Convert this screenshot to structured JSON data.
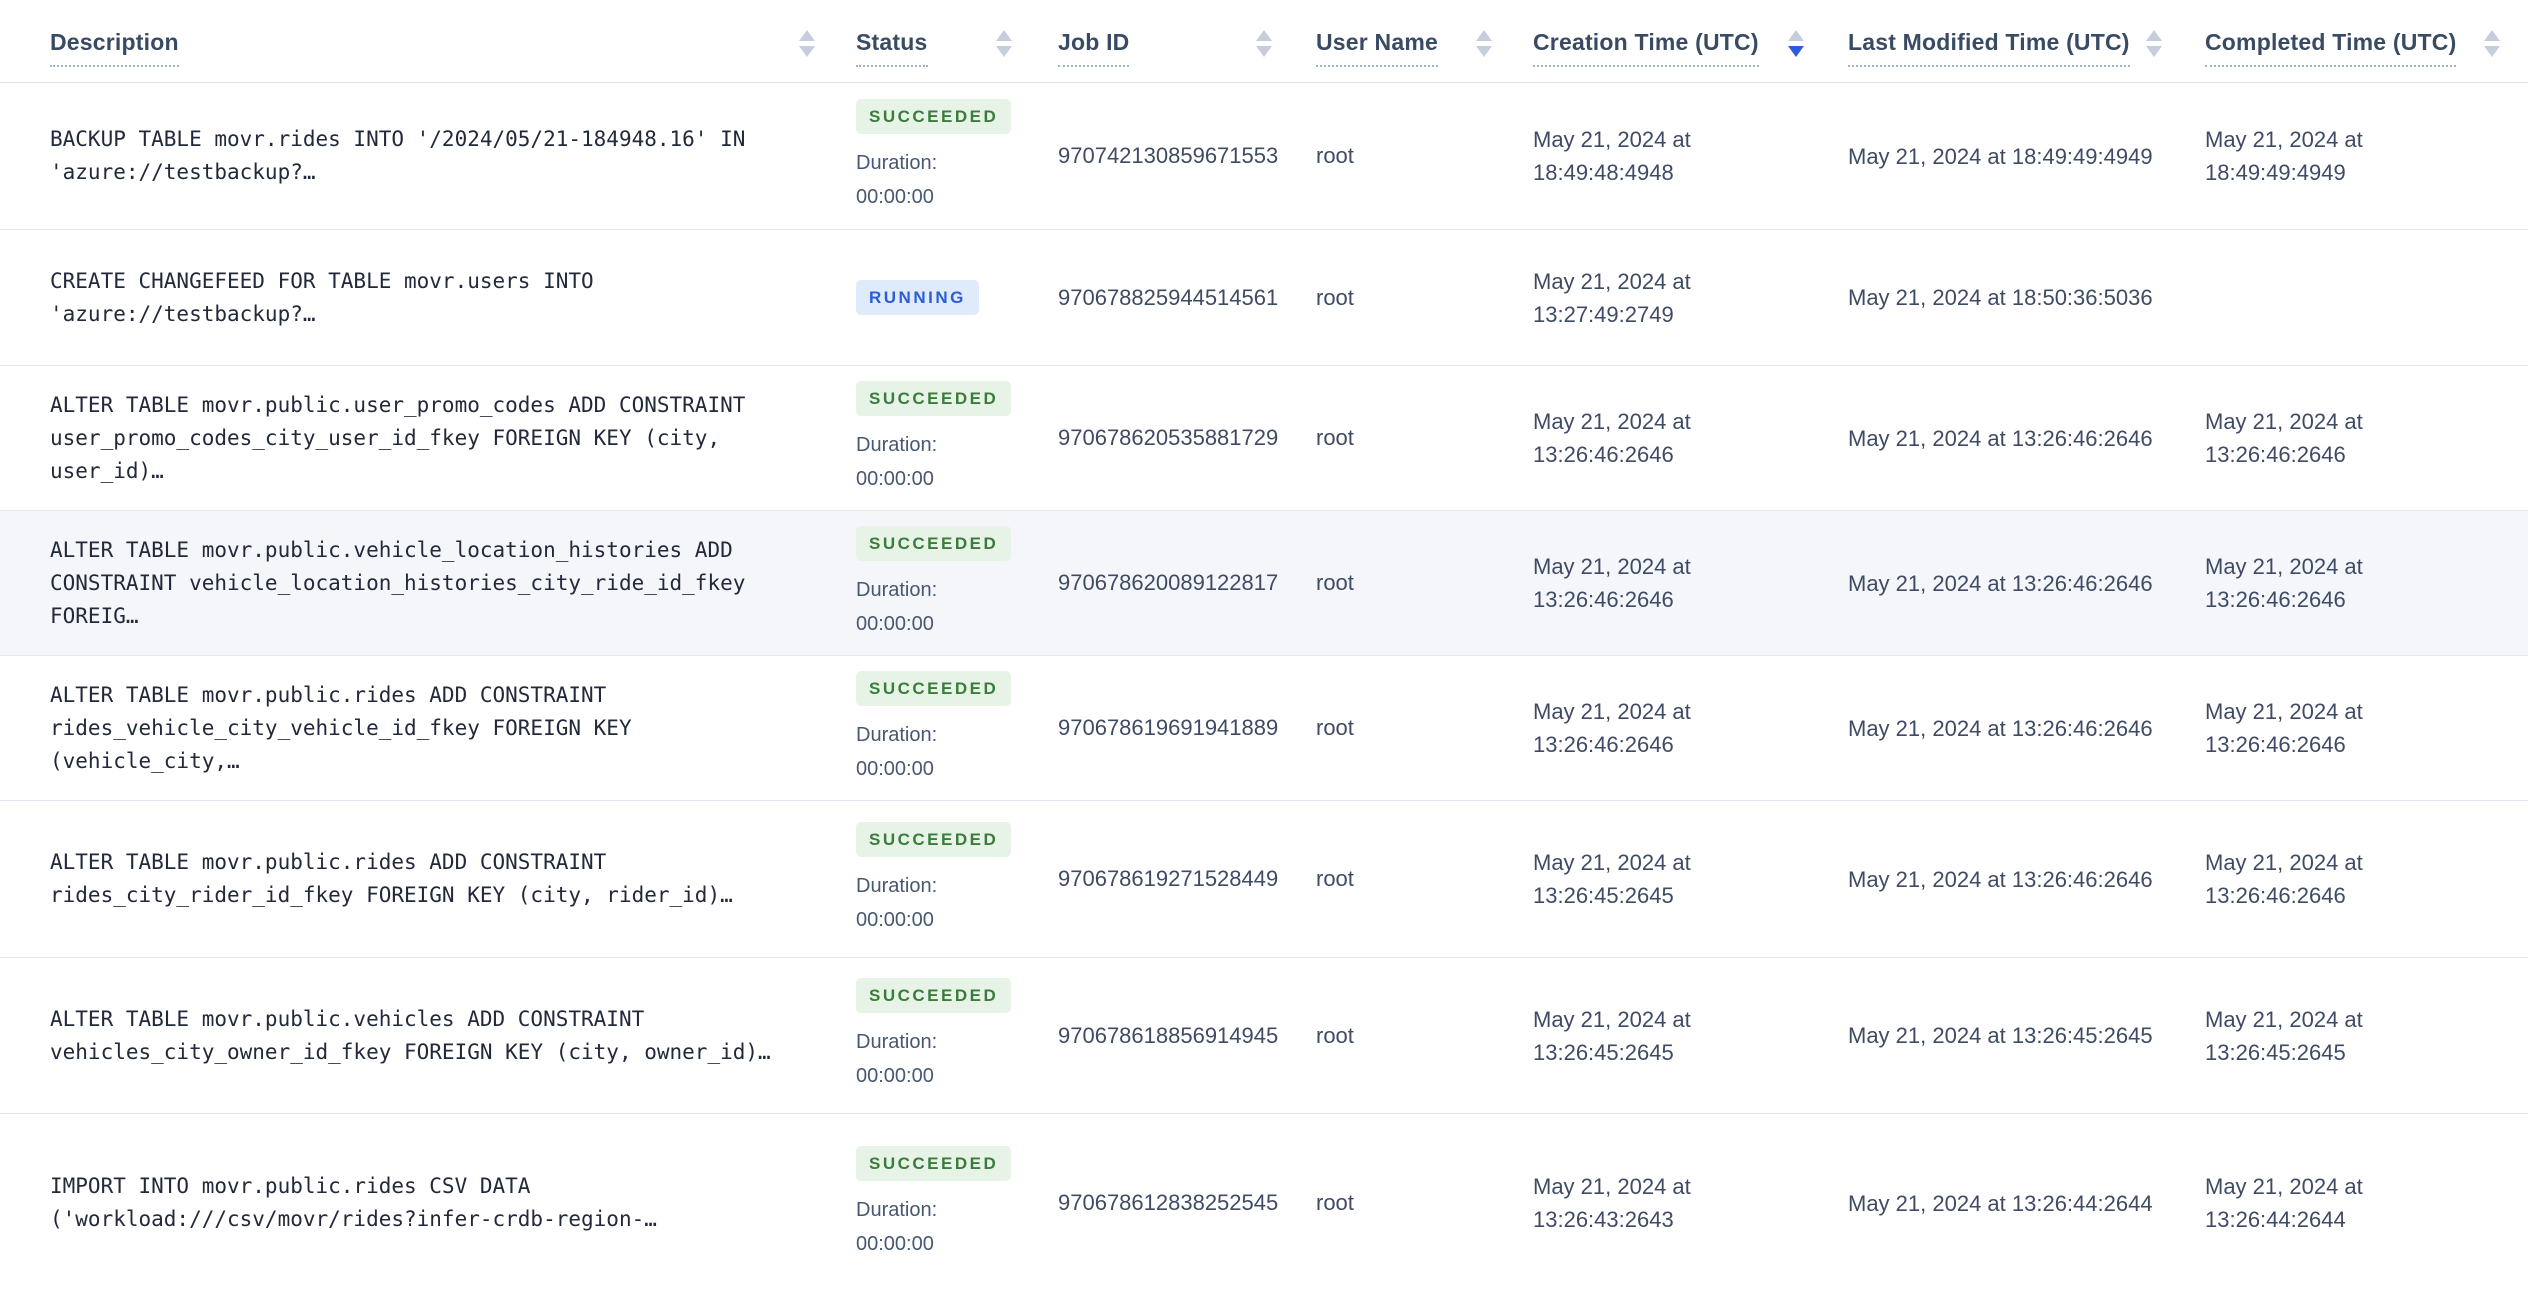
{
  "colors": {
    "accent_blue": "#2a5cdc",
    "succeeded_bg": "#e7f3e7",
    "succeeded_text": "#3a7d3a",
    "running_bg": "#dfeafb",
    "running_text": "#2a5cdc",
    "row_highlight_bg": "#f4f6fa"
  },
  "table": {
    "duration_label": "Duration:",
    "columns": [
      {
        "label": "Description",
        "sort": "none"
      },
      {
        "label": "Status",
        "sort": "none"
      },
      {
        "label": "Job ID",
        "sort": "none"
      },
      {
        "label": "User Name",
        "sort": "none"
      },
      {
        "label": "Creation Time (UTC)",
        "sort": "desc"
      },
      {
        "label": "Last Modified Time (UTC)",
        "sort": "none"
      },
      {
        "label": "Completed Time (UTC)",
        "sort": "none"
      }
    ],
    "rows": [
      {
        "description": "BACKUP TABLE movr.rides INTO '/2024/05/21-184948.16' IN\n'azure://testbackup?…",
        "status": "SUCCEEDED",
        "duration": "00:00:00",
        "job_id": "970742130859671553",
        "user_name": "root",
        "creation_time": "May 21, 2024 at 18:49:48:4948",
        "last_modified_time": "May 21, 2024 at 18:49:49:4949",
        "completed_time": "May 21, 2024 at 18:49:49:4949",
        "highlighted": false
      },
      {
        "description": "CREATE CHANGEFEED FOR TABLE movr.users INTO\n'azure://testbackup?…",
        "status": "RUNNING",
        "duration": null,
        "job_id": "970678825944514561",
        "user_name": "root",
        "creation_time": "May 21, 2024 at 13:27:49:2749",
        "last_modified_time": "May 21, 2024 at 18:50:36:5036",
        "completed_time": "",
        "highlighted": false
      },
      {
        "description": "ALTER TABLE movr.public.user_promo_codes ADD CONSTRAINT\nuser_promo_codes_city_user_id_fkey FOREIGN KEY (city, user_id)…",
        "status": "SUCCEEDED",
        "duration": "00:00:00",
        "job_id": "970678620535881729",
        "user_name": "root",
        "creation_time": "May 21, 2024 at 13:26:46:2646",
        "last_modified_time": "May 21, 2024 at 13:26:46:2646",
        "completed_time": "May 21, 2024 at 13:26:46:2646",
        "highlighted": false
      },
      {
        "description": "ALTER TABLE movr.public.vehicle_location_histories ADD\nCONSTRAINT vehicle_location_histories_city_ride_id_fkey FOREIG…",
        "status": "SUCCEEDED",
        "duration": "00:00:00",
        "job_id": "970678620089122817",
        "user_name": "root",
        "creation_time": "May 21, 2024 at 13:26:46:2646",
        "last_modified_time": "May 21, 2024 at 13:26:46:2646",
        "completed_time": "May 21, 2024 at 13:26:46:2646",
        "highlighted": true
      },
      {
        "description": "ALTER TABLE movr.public.rides ADD CONSTRAINT\nrides_vehicle_city_vehicle_id_fkey FOREIGN KEY (vehicle_city,…",
        "status": "SUCCEEDED",
        "duration": "00:00:00",
        "job_id": "970678619691941889",
        "user_name": "root",
        "creation_time": "May 21, 2024 at 13:26:46:2646",
        "last_modified_time": "May 21, 2024 at 13:26:46:2646",
        "completed_time": "May 21, 2024 at 13:26:46:2646",
        "highlighted": false
      },
      {
        "description": "ALTER TABLE movr.public.rides ADD CONSTRAINT\nrides_city_rider_id_fkey FOREIGN KEY (city, rider_id)…",
        "status": "SUCCEEDED",
        "duration": "00:00:00",
        "job_id": "970678619271528449",
        "user_name": "root",
        "creation_time": "May 21, 2024 at 13:26:45:2645",
        "last_modified_time": "May 21, 2024 at 13:26:46:2646",
        "completed_time": "May 21, 2024 at 13:26:46:2646",
        "highlighted": false
      },
      {
        "description": "ALTER TABLE movr.public.vehicles ADD CONSTRAINT\nvehicles_city_owner_id_fkey FOREIGN KEY (city, owner_id)…",
        "status": "SUCCEEDED",
        "duration": "00:00:00",
        "job_id": "970678618856914945",
        "user_name": "root",
        "creation_time": "May 21, 2024 at 13:26:45:2645",
        "last_modified_time": "May 21, 2024 at 13:26:45:2645",
        "completed_time": "May 21, 2024 at 13:26:45:2645",
        "highlighted": false
      },
      {
        "description": "IMPORT INTO movr.public.rides CSV DATA\n('workload:///csv/movr/rides?infer-crdb-region-…",
        "status": "SUCCEEDED",
        "duration": "00:00:00",
        "job_id": "970678612838252545",
        "user_name": "root",
        "creation_time": "May 21, 2024 at 13:26:43:2643",
        "last_modified_time": "May 21, 2024 at 13:26:44:2644",
        "completed_time": "May 21, 2024 at 13:26:44:2644",
        "highlighted": false
      }
    ]
  }
}
